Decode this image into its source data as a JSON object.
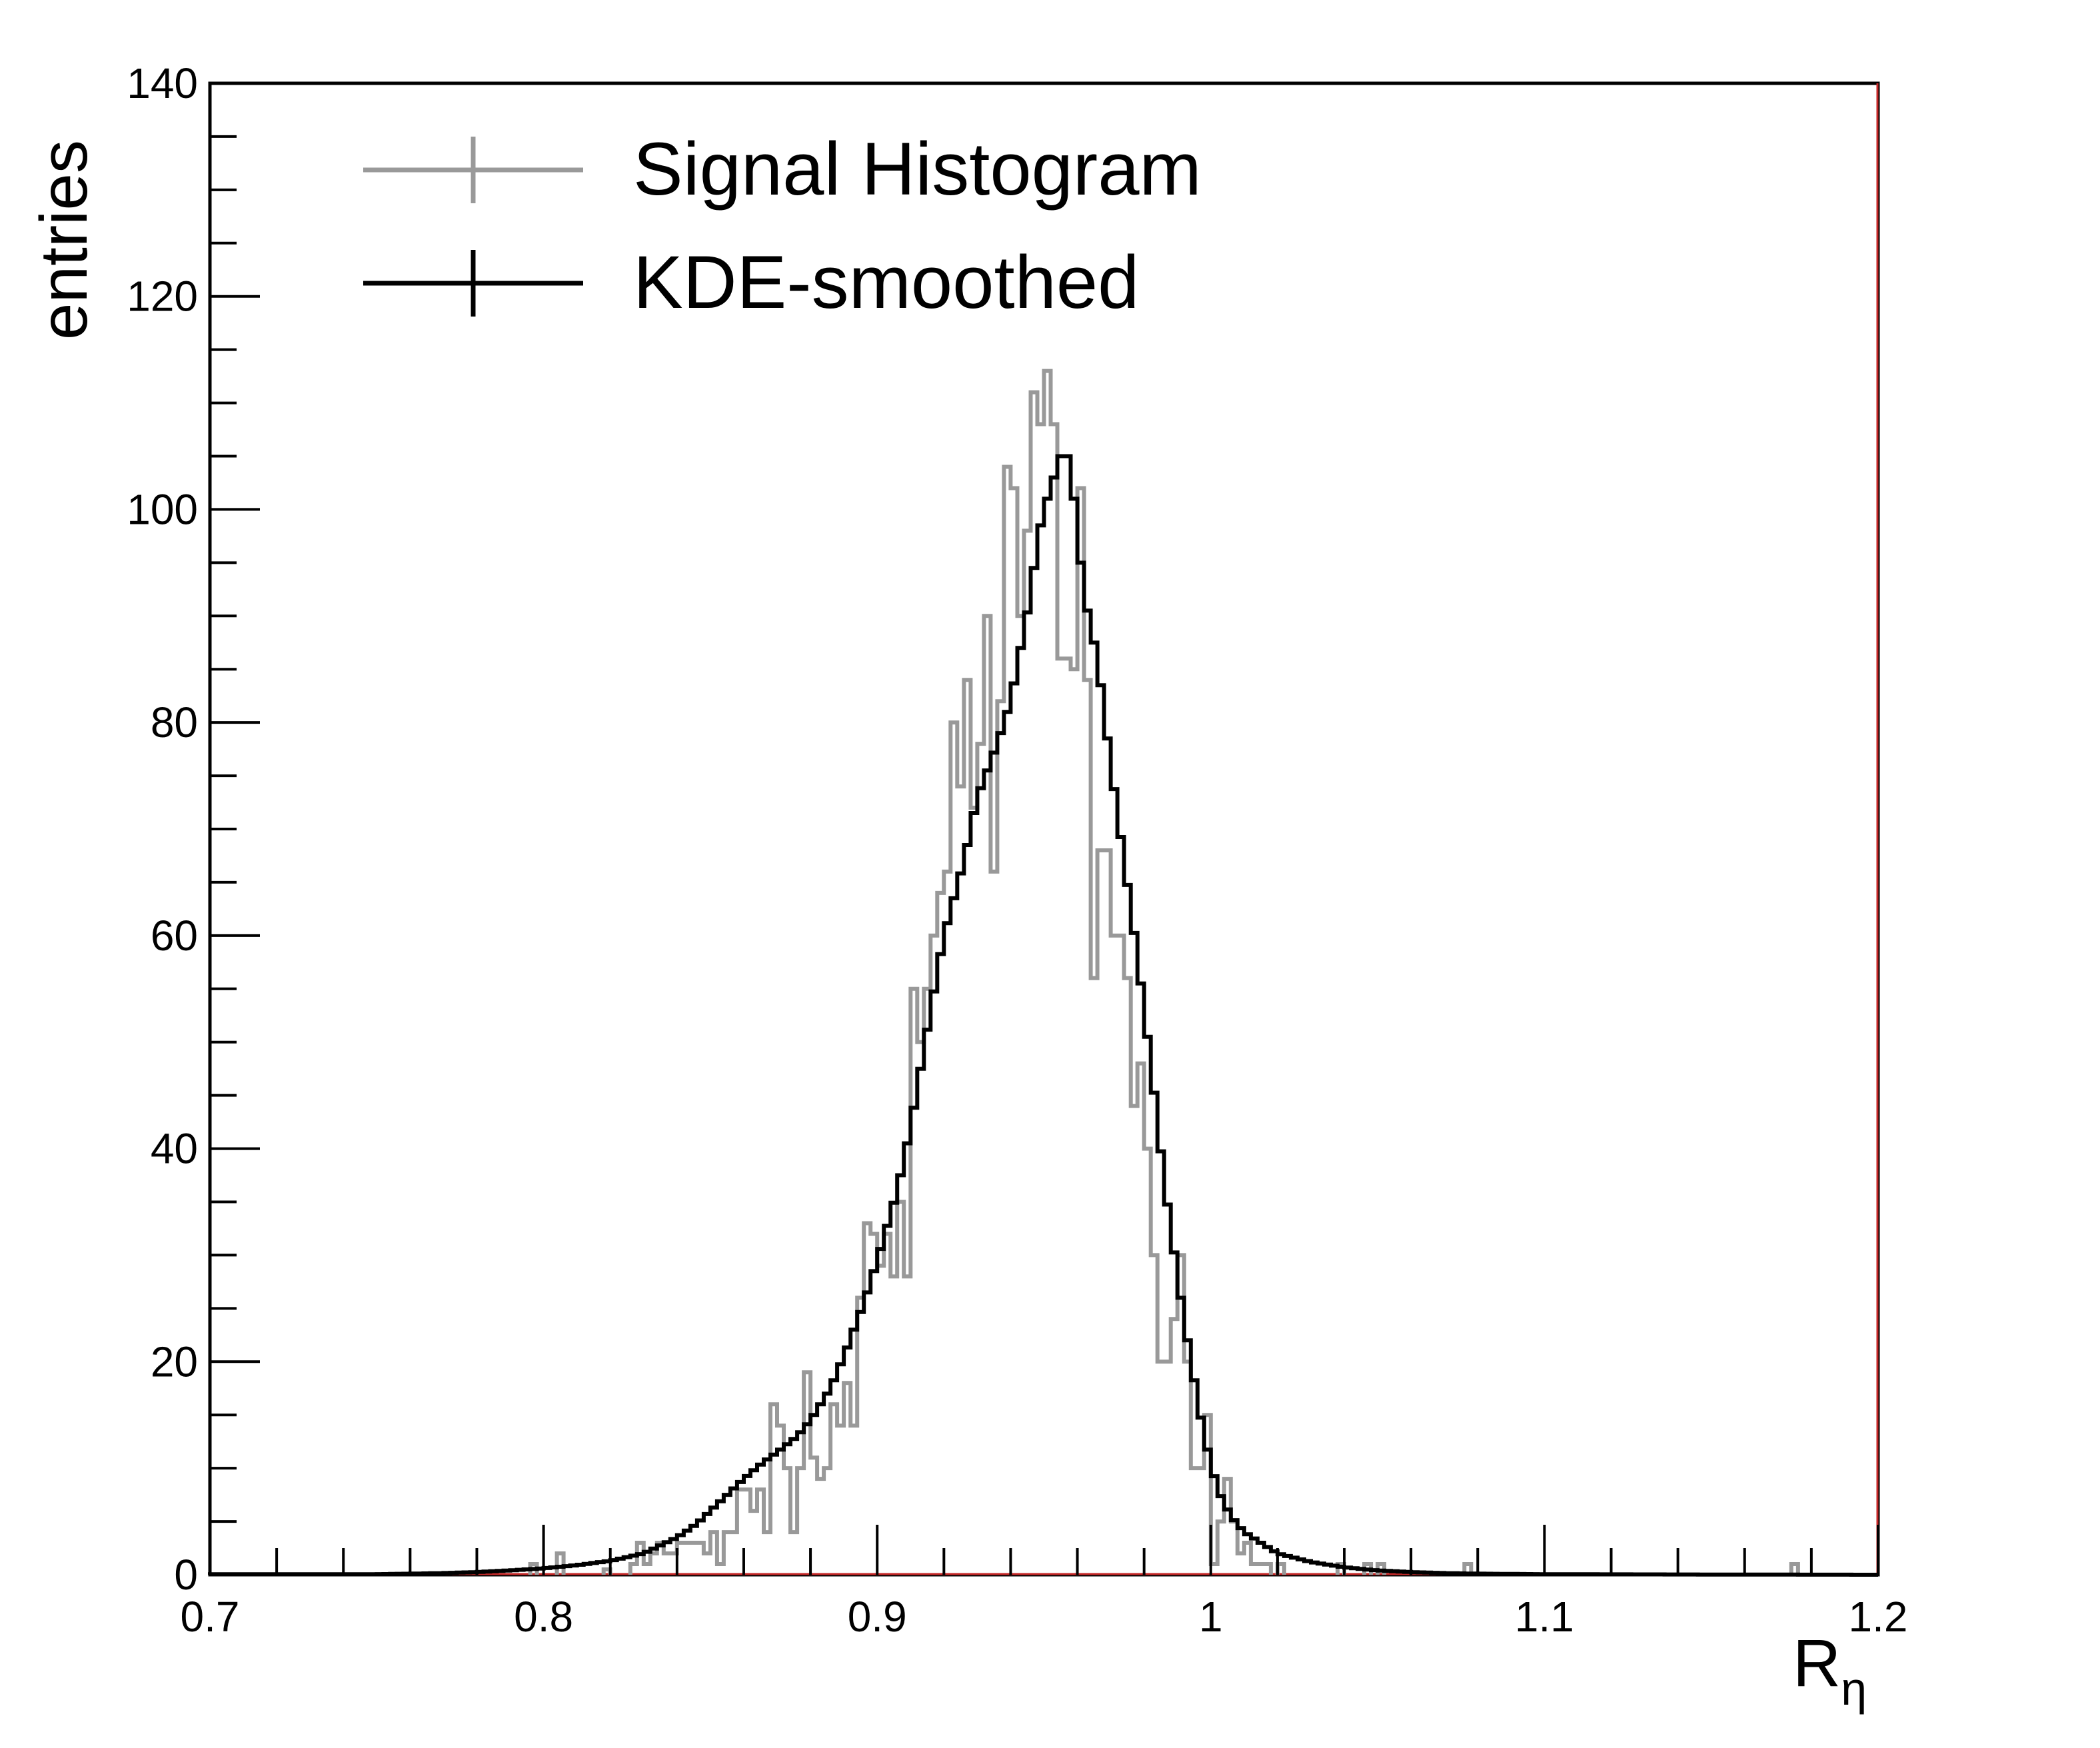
{
  "chart_data": {
    "type": "line",
    "xlabel": "R",
    "xlabel_subscript": "η",
    "ylabel": "entries",
    "xlim": [
      0.7,
      1.2
    ],
    "ylim": [
      0,
      140
    ],
    "grid": false,
    "legend_position": "top-left",
    "x_ticks": [
      "0.7",
      "0.8",
      "0.9",
      "1",
      "1.1",
      "1.2"
    ],
    "y_ticks": [
      "0",
      "20",
      "40",
      "60",
      "80",
      "100",
      "120",
      "140"
    ],
    "series": [
      {
        "name": "Signal Histogram",
        "color": "#999999",
        "style": "step",
        "bin_width": 0.002,
        "x_start": 0.7,
        "points": [
          [
            0.796,
            1
          ],
          [
            0.804,
            2
          ],
          [
            0.818,
            0.5
          ],
          [
            0.826,
            1
          ],
          [
            0.828,
            3
          ],
          [
            0.83,
            1
          ],
          [
            0.832,
            2
          ],
          [
            0.834,
            3
          ],
          [
            0.836,
            2
          ],
          [
            0.838,
            2
          ],
          [
            0.84,
            3
          ],
          [
            0.842,
            3
          ],
          [
            0.844,
            3
          ],
          [
            0.846,
            3
          ],
          [
            0.848,
            2
          ],
          [
            0.85,
            4
          ],
          [
            0.852,
            1
          ],
          [
            0.854,
            4
          ],
          [
            0.856,
            4
          ],
          [
            0.858,
            8
          ],
          [
            0.86,
            8
          ],
          [
            0.862,
            6
          ],
          [
            0.864,
            8
          ],
          [
            0.866,
            4
          ],
          [
            0.868,
            16
          ],
          [
            0.87,
            14
          ],
          [
            0.872,
            10
          ],
          [
            0.874,
            4
          ],
          [
            0.876,
            10
          ],
          [
            0.878,
            19
          ],
          [
            0.88,
            11
          ],
          [
            0.882,
            9
          ],
          [
            0.884,
            10
          ],
          [
            0.886,
            16
          ],
          [
            0.888,
            14
          ],
          [
            0.89,
            18
          ],
          [
            0.892,
            14
          ],
          [
            0.894,
            26
          ],
          [
            0.896,
            33
          ],
          [
            0.898,
            32
          ],
          [
            0.9,
            29
          ],
          [
            0.902,
            32
          ],
          [
            0.904,
            28
          ],
          [
            0.906,
            35
          ],
          [
            0.908,
            28
          ],
          [
            0.91,
            55
          ],
          [
            0.912,
            50
          ],
          [
            0.914,
            55
          ],
          [
            0.916,
            60
          ],
          [
            0.918,
            64
          ],
          [
            0.92,
            66
          ],
          [
            0.922,
            80
          ],
          [
            0.924,
            74
          ],
          [
            0.926,
            84
          ],
          [
            0.928,
            72
          ],
          [
            0.93,
            78
          ],
          [
            0.932,
            90
          ],
          [
            0.934,
            66
          ],
          [
            0.936,
            82
          ],
          [
            0.938,
            104
          ],
          [
            0.94,
            102
          ],
          [
            0.942,
            90
          ],
          [
            0.944,
            98
          ],
          [
            0.946,
            111
          ],
          [
            0.948,
            108
          ],
          [
            0.95,
            113
          ],
          [
            0.952,
            108
          ],
          [
            0.954,
            86
          ],
          [
            0.956,
            86
          ],
          [
            0.958,
            85
          ],
          [
            0.96,
            102
          ],
          [
            0.962,
            84
          ],
          [
            0.964,
            56
          ],
          [
            0.966,
            68
          ],
          [
            0.968,
            68
          ],
          [
            0.97,
            60
          ],
          [
            0.972,
            60
          ],
          [
            0.974,
            56
          ],
          [
            0.976,
            44
          ],
          [
            0.978,
            48
          ],
          [
            0.98,
            40
          ],
          [
            0.982,
            30
          ],
          [
            0.984,
            20
          ],
          [
            0.986,
            20
          ],
          [
            0.988,
            24
          ],
          [
            0.99,
            30
          ],
          [
            0.992,
            20
          ],
          [
            0.994,
            10
          ],
          [
            0.996,
            10
          ],
          [
            0.998,
            15
          ],
          [
            1.0,
            1
          ],
          [
            1.002,
            5
          ],
          [
            1.004,
            9
          ],
          [
            1.006,
            5
          ],
          [
            1.008,
            2
          ],
          [
            1.01,
            3
          ],
          [
            1.012,
            1
          ],
          [
            1.014,
            1
          ],
          [
            1.016,
            1
          ],
          [
            1.02,
            1
          ],
          [
            1.038,
            1
          ],
          [
            1.046,
            1
          ],
          [
            1.05,
            1
          ],
          [
            1.076,
            1
          ],
          [
            1.174,
            1
          ]
        ]
      },
      {
        "name": "KDE-smoothed",
        "color": "#000000",
        "style": "step",
        "bin_width": 0.002,
        "x_start": 0.7,
        "points": [
          [
            0.75,
            0.05
          ],
          [
            0.76,
            0.1
          ],
          [
            0.77,
            0.15
          ],
          [
            0.78,
            0.25
          ],
          [
            0.79,
            0.4
          ],
          [
            0.8,
            0.6
          ],
          [
            0.81,
            0.9
          ],
          [
            0.82,
            1.3
          ],
          [
            0.83,
            2.0
          ],
          [
            0.84,
            3.5
          ],
          [
            0.846,
            4.8
          ],
          [
            0.85,
            6.0
          ],
          [
            0.856,
            7.8
          ],
          [
            0.86,
            9.0
          ],
          [
            0.866,
            10.6
          ],
          [
            0.87,
            11.5
          ],
          [
            0.876,
            13.0
          ],
          [
            0.88,
            14.5
          ],
          [
            0.886,
            17.5
          ],
          [
            0.89,
            20.5
          ],
          [
            0.896,
            25.5
          ],
          [
            0.9,
            29.5
          ],
          [
            0.906,
            36
          ],
          [
            0.91,
            42
          ],
          [
            0.916,
            53
          ],
          [
            0.92,
            60
          ],
          [
            0.926,
            67
          ],
          [
            0.93,
            73
          ],
          [
            0.936,
            78
          ],
          [
            0.94,
            82
          ],
          [
            0.946,
            92
          ],
          [
            0.948,
            97
          ],
          [
            0.95,
            100
          ],
          [
            0.952,
            102
          ],
          [
            0.954,
            104
          ],
          [
            0.956,
            106
          ],
          [
            0.958,
            104
          ],
          [
            0.96,
            98
          ],
          [
            0.962,
            92
          ],
          [
            0.966,
            86
          ],
          [
            0.97,
            76
          ],
          [
            0.974,
            67
          ],
          [
            0.978,
            58
          ],
          [
            0.982,
            48
          ],
          [
            0.986,
            37
          ],
          [
            0.99,
            28
          ],
          [
            0.994,
            20
          ],
          [
            0.998,
            13
          ],
          [
            1.002,
            8
          ],
          [
            1.006,
            5.5
          ],
          [
            1.01,
            4
          ],
          [
            1.016,
            2.8
          ],
          [
            1.02,
            2.0
          ],
          [
            1.03,
            1.2
          ],
          [
            1.04,
            0.7
          ],
          [
            1.05,
            0.4
          ],
          [
            1.06,
            0.25
          ],
          [
            1.07,
            0.15
          ],
          [
            1.08,
            0.1
          ],
          [
            1.1,
            0.05
          ],
          [
            1.15,
            0.02
          ],
          [
            1.2,
            0
          ]
        ]
      }
    ]
  }
}
